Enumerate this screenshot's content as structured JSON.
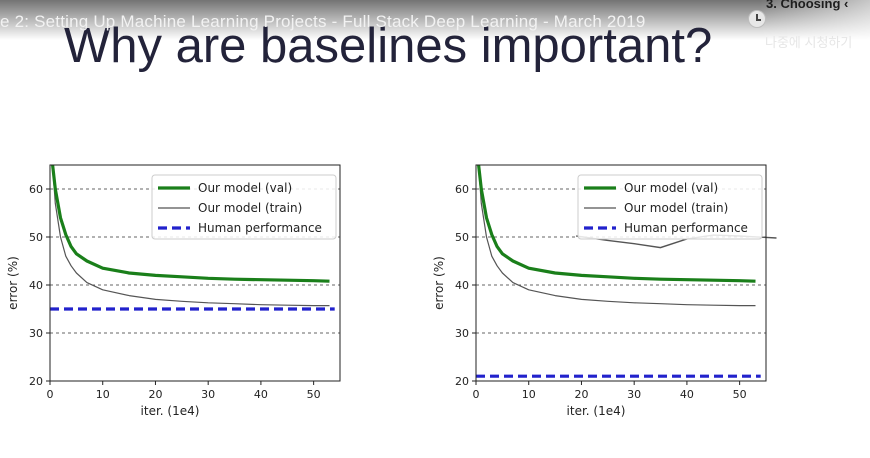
{
  "video": {
    "title": "e 2: Setting Up Machine Learning Projects - Full Stack Deep Learning - March 2019",
    "chapter_label": "3. Choosing ‹",
    "watch_later_label": "나중에 시청하기"
  },
  "slide": {
    "title": "Why are baselines important?"
  },
  "chart_data": [
    {
      "type": "line",
      "xlabel": "iter. (1e4)",
      "ylabel": "error (%)",
      "xlim": [
        0,
        55
      ],
      "ylim": [
        20,
        65
      ],
      "xticks": [
        0,
        10,
        20,
        30,
        40,
        50
      ],
      "yticks": [
        20,
        30,
        40,
        50,
        60
      ],
      "grid": "horizontal dashed at 30, 40, 50, 60",
      "legend_position": "top-right",
      "series": [
        {
          "name": "Our model (val)",
          "color": "#1a7f1a",
          "style": "solid-thick",
          "x": [
            0.5,
            1,
            2,
            3,
            4,
            5,
            7,
            10,
            15,
            20,
            25,
            30,
            35,
            40,
            45,
            50,
            53
          ],
          "y": [
            65,
            60,
            54,
            50.5,
            48,
            46.5,
            45,
            43.5,
            42.5,
            42,
            41.7,
            41.4,
            41.2,
            41.1,
            41,
            40.9,
            40.8
          ]
        },
        {
          "name": "Our model (train)",
          "color": "#555555",
          "style": "solid-thin",
          "x": [
            0.5,
            1,
            2,
            3,
            4,
            5,
            7,
            10,
            15,
            20,
            25,
            30,
            35,
            40,
            45,
            50,
            53
          ],
          "y": [
            65,
            57,
            50,
            46,
            44,
            42.5,
            40.5,
            39,
            37.8,
            37,
            36.6,
            36.3,
            36.1,
            35.9,
            35.8,
            35.7,
            35.7
          ]
        },
        {
          "name": "Human performance",
          "color": "#2222cc",
          "style": "dashed-thick",
          "x": [
            0,
            54
          ],
          "y": [
            35,
            35
          ]
        }
      ]
    },
    {
      "type": "line",
      "xlabel": "iter. (1e4)",
      "ylabel": "error (%)",
      "xlim": [
        0,
        55
      ],
      "ylim": [
        20,
        65
      ],
      "xticks": [
        0,
        10,
        20,
        30,
        40,
        50
      ],
      "yticks": [
        20,
        30,
        40,
        50,
        60
      ],
      "grid": "horizontal dashed at 30, 40, 50, 60",
      "legend_position": "top-right",
      "series": [
        {
          "name": "Our model (val)",
          "color": "#1a7f1a",
          "style": "solid-thick",
          "x": [
            0.5,
            1,
            2,
            3,
            4,
            5,
            7,
            10,
            15,
            20,
            25,
            30,
            35,
            40,
            45,
            50,
            53
          ],
          "y": [
            65,
            60,
            54,
            50.5,
            48,
            46.5,
            45,
            43.5,
            42.5,
            42,
            41.7,
            41.4,
            41.2,
            41.1,
            41,
            40.9,
            40.8
          ]
        },
        {
          "name": "Our model (train)",
          "color": "#555555",
          "style": "solid-thin",
          "x": [
            0.5,
            1,
            2,
            3,
            4,
            5,
            7,
            10,
            15,
            20,
            25,
            30,
            35,
            40,
            45,
            50,
            53
          ],
          "y": [
            65,
            57,
            50,
            46,
            44,
            42.5,
            40.5,
            39,
            37.8,
            37,
            36.6,
            36.3,
            36.1,
            35.9,
            35.8,
            35.7,
            35.7
          ]
        },
        {
          "name": "Human performance",
          "color": "#2222cc",
          "style": "dashed-thick",
          "x": [
            0,
            54
          ],
          "y": [
            21,
            21
          ]
        }
      ],
      "annotation_series": {
        "color": "#555555",
        "x": [
          19,
          25,
          30,
          35,
          40,
          45,
          50,
          57
        ],
        "y": [
          50.2,
          49.3,
          48.6,
          47.8,
          49.6,
          50.4,
          50.2,
          49.8
        ]
      }
    }
  ]
}
